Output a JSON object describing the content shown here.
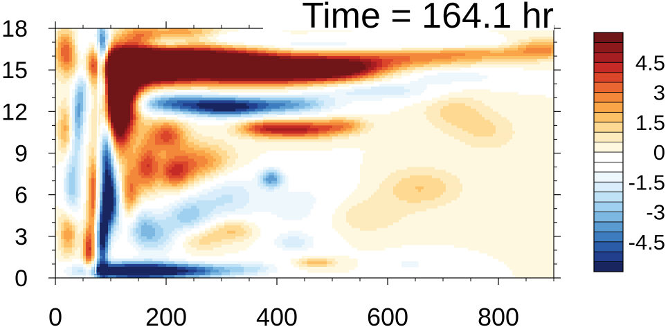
{
  "chart_data": {
    "type": "heatmap",
    "title": "Time = 164.1 hr",
    "xlabel": "",
    "ylabel": "",
    "xlim": [
      0,
      900
    ],
    "ylim": [
      0,
      18
    ],
    "x_ticks": [
      "0",
      "200",
      "400",
      "600",
      "800"
    ],
    "y_ticks": [
      "0",
      "3",
      "6",
      "9",
      "12",
      "15",
      "18"
    ],
    "colorbar": {
      "min": -6,
      "max": 6,
      "step": 0.5,
      "tick_labels": [
        "-4.5",
        "-3",
        "-1.5",
        "0",
        "1.5",
        "3",
        "4.5"
      ],
      "colors": [
        "#19255e",
        "#213f8c",
        "#2a5ca8",
        "#3d7cbf",
        "#5a9bd2",
        "#7db8e3",
        "#9fd0ef",
        "#bfe2f6",
        "#d9eefa",
        "#edf7fc",
        "#ffffff",
        "#ffffff",
        "#fff8e0",
        "#feebbd",
        "#fdd992",
        "#fcc167",
        "#f9a548",
        "#f3873a",
        "#e96531",
        "#db462b",
        "#c52a26",
        "#a61d22",
        "#8c1a1c",
        "#701518"
      ]
    },
    "features": [
      {
        "x": 150,
        "y": 15.3,
        "sx": 60,
        "sy": 0.9,
        "a": 9
      },
      {
        "x": 260,
        "y": 15.5,
        "sx": 90,
        "sy": 0.8,
        "a": 8
      },
      {
        "x": 390,
        "y": 15.0,
        "sx": 90,
        "sy": 0.7,
        "a": 7
      },
      {
        "x": 510,
        "y": 15.1,
        "sx": 60,
        "sy": 0.6,
        "a": 5
      },
      {
        "x": 620,
        "y": 15.8,
        "sx": 80,
        "sy": 0.5,
        "a": 2.5
      },
      {
        "x": 760,
        "y": 16.2,
        "sx": 70,
        "sy": 0.45,
        "a": 2
      },
      {
        "x": 880,
        "y": 16.5,
        "sx": 40,
        "sy": 0.5,
        "a": 2.5
      },
      {
        "x": 110,
        "y": 12.0,
        "sx": 20,
        "sy": 2.0,
        "a": 8
      },
      {
        "x": 120,
        "y": 13.5,
        "sx": 25,
        "sy": 1.5,
        "a": 6
      },
      {
        "x": 210,
        "y": 12.6,
        "sx": 60,
        "sy": 0.55,
        "a": -4
      },
      {
        "x": 310,
        "y": 12.3,
        "sx": 50,
        "sy": 0.5,
        "a": -5
      },
      {
        "x": 420,
        "y": 12.5,
        "sx": 60,
        "sy": 0.5,
        "a": -3.5
      },
      {
        "x": 580,
        "y": 13.5,
        "sx": 80,
        "sy": 0.5,
        "a": -2
      },
      {
        "x": 720,
        "y": 14.5,
        "sx": 70,
        "sy": 0.4,
        "a": -1.5
      },
      {
        "x": 440,
        "y": 10.7,
        "sx": 50,
        "sy": 0.45,
        "a": 4.5
      },
      {
        "x": 370,
        "y": 10.8,
        "sx": 30,
        "sy": 0.4,
        "a": 2.5
      },
      {
        "x": 520,
        "y": 11.0,
        "sx": 30,
        "sy": 0.4,
        "a": 2
      },
      {
        "x": 200,
        "y": 10.3,
        "sx": 25,
        "sy": 0.8,
        "a": 3.5
      },
      {
        "x": 260,
        "y": 8.3,
        "sx": 45,
        "sy": 1.0,
        "a": 3
      },
      {
        "x": 215,
        "y": 7.5,
        "sx": 20,
        "sy": 0.8,
        "a": 3
      },
      {
        "x": 165,
        "y": 8.0,
        "sx": 15,
        "sy": 1.2,
        "a": 3.5
      },
      {
        "x": 85,
        "y": 15.5,
        "sx": 8,
        "sy": 2.0,
        "a": -7
      },
      {
        "x": 93,
        "y": 9.5,
        "sx": 10,
        "sy": 2.5,
        "a": -6
      },
      {
        "x": 100,
        "y": 5.5,
        "sx": 12,
        "sy": 1.5,
        "a": -5
      },
      {
        "x": 85,
        "y": 3.0,
        "sx": 8,
        "sy": 1.8,
        "a": -6
      },
      {
        "x": 70,
        "y": 6.0,
        "sx": 8,
        "sy": 2.0,
        "a": 4
      },
      {
        "x": 60,
        "y": 2.0,
        "sx": 7,
        "sy": 1.2,
        "a": 4
      },
      {
        "x": 25,
        "y": 3.3,
        "sx": 12,
        "sy": 1.2,
        "a": 3.5
      },
      {
        "x": 30,
        "y": 7.0,
        "sx": 12,
        "sy": 3.0,
        "a": -3
      },
      {
        "x": 20,
        "y": 10.5,
        "sx": 10,
        "sy": 1.5,
        "a": 3
      },
      {
        "x": 18,
        "y": 16.5,
        "sx": 12,
        "sy": 1.0,
        "a": 3
      },
      {
        "x": 50,
        "y": 14.5,
        "sx": 10,
        "sy": 2.0,
        "a": -3
      },
      {
        "x": 40,
        "y": 11.5,
        "sx": 8,
        "sy": 1.5,
        "a": -2.5
      },
      {
        "x": 135,
        "y": 0.5,
        "sx": 60,
        "sy": 0.45,
        "a": -7
      },
      {
        "x": 250,
        "y": 0.5,
        "sx": 60,
        "sy": 0.4,
        "a": -4
      },
      {
        "x": 360,
        "y": 0.7,
        "sx": 40,
        "sy": 0.4,
        "a": -1.5
      },
      {
        "x": 390,
        "y": 7.2,
        "sx": 15,
        "sy": 0.5,
        "a": -3.5
      },
      {
        "x": 310,
        "y": 6.0,
        "sx": 40,
        "sy": 1.5,
        "a": -2
      },
      {
        "x": 240,
        "y": 4.5,
        "sx": 30,
        "sy": 1.0,
        "a": -2.5
      },
      {
        "x": 180,
        "y": 3.0,
        "sx": 30,
        "sy": 1.0,
        "a": -2.5
      },
      {
        "x": 320,
        "y": 3.5,
        "sx": 30,
        "sy": 0.6,
        "a": 2
      },
      {
        "x": 260,
        "y": 2.8,
        "sx": 30,
        "sy": 0.6,
        "a": 1.5
      },
      {
        "x": 450,
        "y": 5.0,
        "sx": 60,
        "sy": 1.5,
        "a": -1.5
      },
      {
        "x": 430,
        "y": 2.5,
        "sx": 30,
        "sy": 0.5,
        "a": -1.5
      },
      {
        "x": 470,
        "y": 1.1,
        "sx": 25,
        "sy": 0.25,
        "a": 2
      },
      {
        "x": 660,
        "y": 6.5,
        "sx": 50,
        "sy": 1.0,
        "a": 1.5
      },
      {
        "x": 540,
        "y": 4.5,
        "sx": 60,
        "sy": 1.0,
        "a": 1.2
      },
      {
        "x": 720,
        "y": 12.0,
        "sx": 40,
        "sy": 1.0,
        "a": 1.2
      },
      {
        "x": 780,
        "y": 10.5,
        "sx": 40,
        "sy": 1.0,
        "a": 1.0
      },
      {
        "x": 640,
        "y": 1.0,
        "sx": 30,
        "sy": 0.5,
        "a": -1.2
      },
      {
        "x": 230,
        "y": 17.8,
        "sx": 50,
        "sy": 0.4,
        "a": 2
      },
      {
        "x": 320,
        "y": 17.2,
        "sx": 40,
        "sy": 0.4,
        "a": -1.5
      },
      {
        "x": 200,
        "y": 16.9,
        "sx": 30,
        "sy": 0.3,
        "a": -2
      },
      {
        "x": 440,
        "y": 16.8,
        "sx": 60,
        "sy": 0.3,
        "a": -1.5
      },
      {
        "x": 600,
        "y": 16.8,
        "sx": 80,
        "sy": 0.3,
        "a": -1.2
      },
      {
        "x": 750,
        "y": 16.9,
        "sx": 60,
        "sy": 0.3,
        "a": -1.2
      },
      {
        "x": 150,
        "y": 17.5,
        "sx": 25,
        "sy": 0.5,
        "a": 2
      },
      {
        "x": 135,
        "y": 6.0,
        "sx": 12,
        "sy": 1.5,
        "a": 3
      },
      {
        "x": 150,
        "y": 4.0,
        "sx": 20,
        "sy": 1.0,
        "a": -2
      }
    ],
    "jet_line": {
      "x": [
        72,
        79
      ],
      "y": [
        0.3,
        17.0
      ]
    }
  }
}
